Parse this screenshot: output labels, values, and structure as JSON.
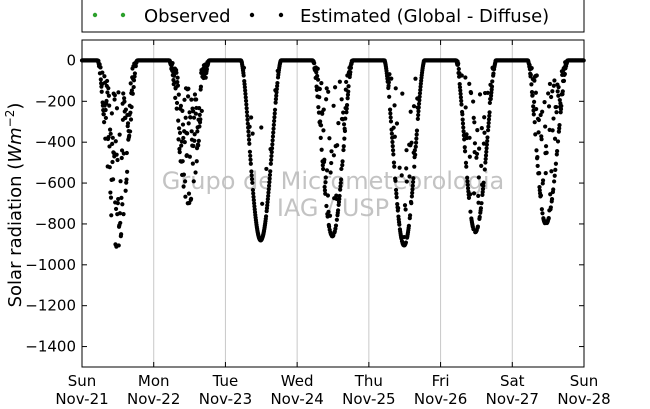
{
  "chart_data": {
    "type": "scatter",
    "title": "",
    "ylabel": "Solar radiation",
    "ylabel_unit": "Wm",
    "ylabel_exp": "−2",
    "ylim": [
      -1500,
      100
    ],
    "yticks": [
      0,
      -200,
      -400,
      -600,
      -800,
      -1000,
      -1200,
      -1400
    ],
    "ytick_labels": [
      "0",
      "−200",
      "−400",
      "−600",
      "−800",
      "−1000",
      "−1200",
      "−1400"
    ],
    "xlim_days": [
      0,
      7
    ],
    "xticks": [
      {
        "day": "Sun",
        "date": "Nov-21"
      },
      {
        "day": "Mon",
        "date": "Nov-22"
      },
      {
        "day": "Tue",
        "date": "Nov-23"
      },
      {
        "day": "Wed",
        "date": "Nov-24"
      },
      {
        "day": "Thu",
        "date": "Nov-25"
      },
      {
        "day": "Fri",
        "date": "Nov-26"
      },
      {
        "day": "Sat",
        "date": "Nov-27"
      },
      {
        "day": "Sun",
        "date": "Nov-28"
      }
    ],
    "grid": "vertical",
    "legend_position": "top",
    "series": [
      {
        "name": "Observed",
        "color": "#2ca02c",
        "values": []
      },
      {
        "name": "Estimated (Global - Diffuse)",
        "color": "#000000"
      }
    ],
    "daily_profile": [
      {
        "date": "Nov-21",
        "sunrise_h": 5.2,
        "sunset_h": 18.6,
        "peak_h": 11.8,
        "peak_value": -915,
        "cloudiness": 0.8
      },
      {
        "date": "Nov-22",
        "sunrise_h": 5.2,
        "sunset_h": 18.6,
        "peak_h": 11.6,
        "peak_value": -700,
        "cloudiness": 0.85
      },
      {
        "date": "Nov-23",
        "sunrise_h": 5.2,
        "sunset_h": 18.6,
        "peak_h": 11.8,
        "peak_value": -880,
        "cloudiness": 0.1
      },
      {
        "date": "Nov-24",
        "sunrise_h": 5.2,
        "sunset_h": 18.6,
        "peak_h": 11.8,
        "peak_value": -860,
        "cloudiness": 0.45
      },
      {
        "date": "Nov-25",
        "sunrise_h": 5.2,
        "sunset_h": 18.6,
        "peak_h": 11.8,
        "peak_value": -905,
        "cloudiness": 0.3
      },
      {
        "date": "Nov-26",
        "sunrise_h": 5.2,
        "sunset_h": 18.6,
        "peak_h": 11.6,
        "peak_value": -840,
        "cloudiness": 0.5
      },
      {
        "date": "Nov-27",
        "sunrise_h": 5.2,
        "sunset_h": 18.6,
        "peak_h": 11.2,
        "peak_value": -800,
        "cloudiness": 0.6
      }
    ],
    "watermark_line1": "Grupo de Micrometeorologia",
    "watermark_line2": "IAG / USP"
  }
}
